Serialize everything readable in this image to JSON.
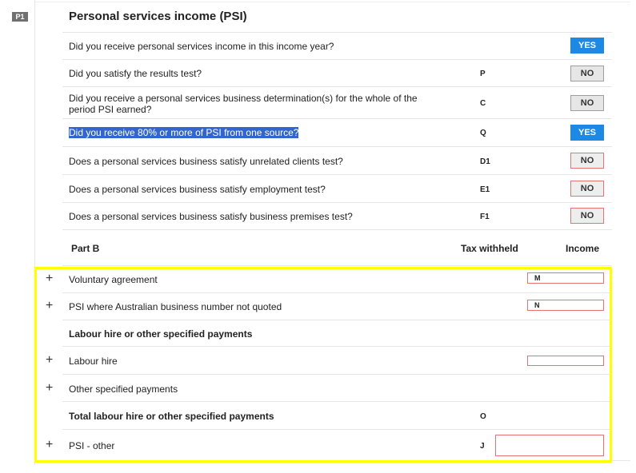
{
  "section": {
    "code": "P1",
    "title": "Personal services income (PSI)"
  },
  "questions": [
    {
      "text": "Did you receive personal services income in this income year?",
      "code": "",
      "answer": "YES"
    },
    {
      "text": "Did you satisfy the results test?",
      "code": "P",
      "answer": "NO"
    },
    {
      "text": "Did you receive a personal services business determination(s) for the whole of the",
      "text2": "period PSI earned?",
      "code": "C",
      "answer": "NO"
    },
    {
      "text": "Did you receive 80% or more of PSI from one source?",
      "code": "Q",
      "answer": "YES"
    },
    {
      "text": "Does a personal services business satisfy unrelated clients test?",
      "code": "D1",
      "answer": "NO"
    },
    {
      "text": "Does a personal services business satisfy employment test?",
      "code": "E1",
      "answer": "NO"
    },
    {
      "text": "Does a personal services business satisfy business premises test?",
      "code": "F1",
      "answer": "NO"
    }
  ],
  "part_b": {
    "title": "Part B",
    "col_tax": "Tax withheld",
    "col_income": "Income",
    "rows": [
      {
        "label": "Voluntary agreement",
        "field_code": "M"
      },
      {
        "label": "PSI where Australian business number not quoted",
        "field_code": "N"
      },
      {
        "label": "Labour hire or other specified payments"
      },
      {
        "label": "Labour hire",
        "field_code": ""
      },
      {
        "label": "Other specified payments"
      },
      {
        "label": "Total labour hire or other specified payments",
        "code": "O"
      },
      {
        "label": "PSI - other",
        "code": "J"
      }
    ]
  },
  "icons": {
    "plus": "+"
  },
  "colors": {
    "yes_button": "#1e88e5",
    "no_button": "#e6e6e6",
    "error_border": "#e57373",
    "selection_highlight": "#3366cc",
    "annotation_box": "#ffff00"
  }
}
